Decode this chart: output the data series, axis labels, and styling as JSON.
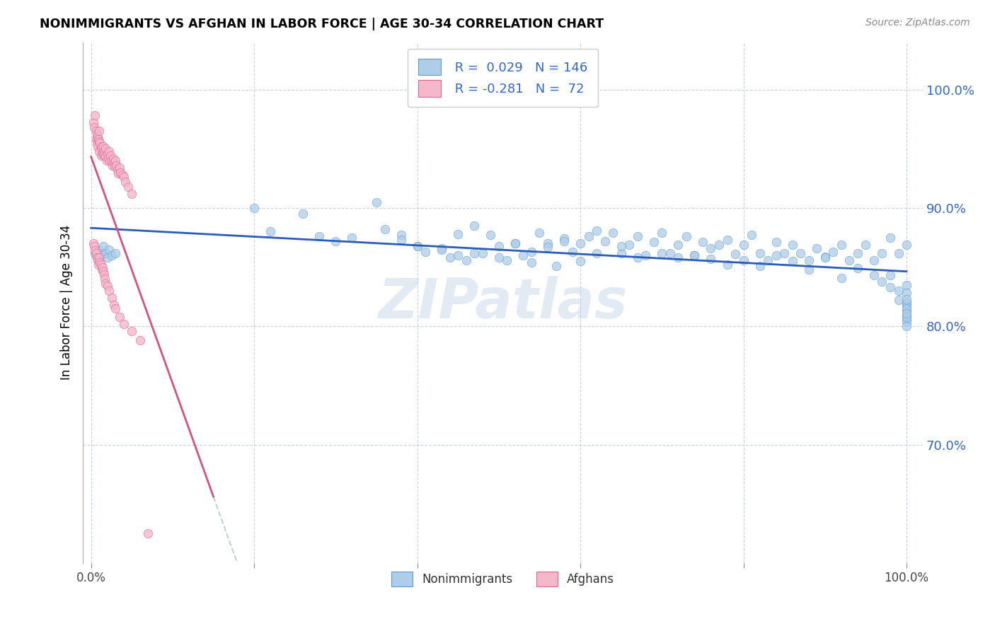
{
  "title": "NONIMMIGRANTS VS AFGHAN IN LABOR FORCE | AGE 30-34 CORRELATION CHART",
  "source": "Source: ZipAtlas.com",
  "ylabel": "In Labor Force | Age 30-34",
  "y_ticks": [
    0.7,
    0.8,
    0.9,
    1.0
  ],
  "y_tick_labels": [
    "70.0%",
    "80.0%",
    "90.0%",
    "100.0%"
  ],
  "x_ticks": [
    0.0,
    0.2,
    0.4,
    0.6,
    0.8,
    1.0
  ],
  "x_tick_labels_show": [
    "0.0%",
    "",
    "",
    "",
    "",
    "100.0%"
  ],
  "legend_blue_r": "0.029",
  "legend_blue_n": "146",
  "legend_pink_r": "-0.281",
  "legend_pink_n": "72",
  "blue_color": "#aecde8",
  "blue_edge_color": "#5b9bd5",
  "pink_color": "#f4b8cb",
  "pink_edge_color": "#e06090",
  "trend_blue_color": "#2a5cbe",
  "trend_pink_color": "#d94f80",
  "trend_dashed_color": "#c5cdd8",
  "watermark": "ZIPatlas",
  "xlim": [
    -0.01,
    1.02
  ],
  "ylim": [
    0.6,
    1.04
  ],
  "blue_scatter_x": [
    0.005,
    0.008,
    0.01,
    0.012,
    0.015,
    0.018,
    0.02,
    0.022,
    0.025,
    0.03,
    0.2,
    0.22,
    0.26,
    0.28,
    0.3,
    0.32,
    0.35,
    0.36,
    0.38,
    0.4,
    0.41,
    0.43,
    0.44,
    0.45,
    0.46,
    0.47,
    0.48,
    0.49,
    0.5,
    0.51,
    0.52,
    0.53,
    0.54,
    0.55,
    0.56,
    0.57,
    0.58,
    0.59,
    0.6,
    0.61,
    0.62,
    0.63,
    0.64,
    0.65,
    0.66,
    0.67,
    0.68,
    0.69,
    0.7,
    0.71,
    0.72,
    0.73,
    0.74,
    0.75,
    0.76,
    0.77,
    0.78,
    0.79,
    0.8,
    0.81,
    0.82,
    0.83,
    0.84,
    0.85,
    0.86,
    0.87,
    0.88,
    0.89,
    0.9,
    0.91,
    0.92,
    0.93,
    0.94,
    0.95,
    0.96,
    0.97,
    0.98,
    0.99,
    1.0,
    0.38,
    0.4,
    0.43,
    0.45,
    0.47,
    0.5,
    0.52,
    0.54,
    0.56,
    0.58,
    0.6,
    0.62,
    0.65,
    0.67,
    0.7,
    0.72,
    0.74,
    0.76,
    0.78,
    0.8,
    0.82,
    0.84,
    0.86,
    0.88,
    0.9,
    0.92,
    0.94,
    0.96,
    0.97,
    0.98,
    0.98,
    0.99,
    0.99,
    1.0,
    1.0,
    1.0,
    1.0,
    1.0,
    1.0,
    1.0,
    1.0,
    1.0,
    1.0,
    1.0,
    1.0,
    1.0,
    1.0
  ],
  "blue_scatter_y": [
    0.862,
    0.858,
    0.865,
    0.86,
    0.868,
    0.862,
    0.858,
    0.865,
    0.86,
    0.862,
    0.9,
    0.88,
    0.895,
    0.876,
    0.872,
    0.875,
    0.905,
    0.882,
    0.877,
    0.868,
    0.863,
    0.866,
    0.858,
    0.878,
    0.856,
    0.885,
    0.862,
    0.877,
    0.868,
    0.856,
    0.87,
    0.86,
    0.854,
    0.879,
    0.87,
    0.851,
    0.874,
    0.863,
    0.87,
    0.876,
    0.881,
    0.872,
    0.879,
    0.862,
    0.869,
    0.876,
    0.86,
    0.871,
    0.879,
    0.862,
    0.869,
    0.876,
    0.86,
    0.871,
    0.866,
    0.869,
    0.873,
    0.861,
    0.869,
    0.877,
    0.862,
    0.856,
    0.871,
    0.862,
    0.869,
    0.862,
    0.856,
    0.866,
    0.859,
    0.863,
    0.869,
    0.856,
    0.862,
    0.869,
    0.856,
    0.862,
    0.875,
    0.862,
    0.869,
    0.873,
    0.868,
    0.865,
    0.86,
    0.862,
    0.858,
    0.87,
    0.863,
    0.867,
    0.872,
    0.855,
    0.862,
    0.868,
    0.858,
    0.862,
    0.858,
    0.86,
    0.857,
    0.852,
    0.856,
    0.851,
    0.86,
    0.855,
    0.848,
    0.858,
    0.841,
    0.849,
    0.843,
    0.838,
    0.833,
    0.843,
    0.83,
    0.822,
    0.82,
    0.817,
    0.813,
    0.809,
    0.806,
    0.804,
    0.8,
    0.82,
    0.815,
    0.808,
    0.835,
    0.828,
    0.823,
    0.811
  ],
  "pink_scatter_x": [
    0.003,
    0.004,
    0.005,
    0.006,
    0.006,
    0.007,
    0.007,
    0.008,
    0.008,
    0.009,
    0.01,
    0.01,
    0.01,
    0.011,
    0.012,
    0.012,
    0.013,
    0.014,
    0.015,
    0.015,
    0.016,
    0.017,
    0.018,
    0.018,
    0.019,
    0.02,
    0.021,
    0.022,
    0.023,
    0.024,
    0.025,
    0.026,
    0.027,
    0.028,
    0.029,
    0.03,
    0.031,
    0.032,
    0.033,
    0.035,
    0.036,
    0.038,
    0.04,
    0.042,
    0.045,
    0.05,
    0.003,
    0.004,
    0.005,
    0.006,
    0.007,
    0.008,
    0.009,
    0.01,
    0.011,
    0.012,
    0.013,
    0.014,
    0.015,
    0.016,
    0.017,
    0.018,
    0.02,
    0.022,
    0.025,
    0.028,
    0.03,
    0.035,
    0.04,
    0.05,
    0.06,
    0.07
  ],
  "pink_scatter_y": [
    0.972,
    0.968,
    0.978,
    0.965,
    0.958,
    0.962,
    0.955,
    0.96,
    0.952,
    0.958,
    0.965,
    0.956,
    0.948,
    0.955,
    0.95,
    0.944,
    0.952,
    0.946,
    0.952,
    0.945,
    0.948,
    0.944,
    0.95,
    0.943,
    0.94,
    0.946,
    0.942,
    0.948,
    0.94,
    0.944,
    0.94,
    0.936,
    0.942,
    0.938,
    0.935,
    0.94,
    0.936,
    0.932,
    0.929,
    0.934,
    0.93,
    0.928,
    0.926,
    0.922,
    0.918,
    0.912,
    0.87,
    0.868,
    0.864,
    0.862,
    0.858,
    0.856,
    0.852,
    0.858,
    0.854,
    0.852,
    0.848,
    0.85,
    0.846,
    0.844,
    0.84,
    0.836,
    0.834,
    0.83,
    0.824,
    0.818,
    0.815,
    0.808,
    0.802,
    0.796,
    0.788,
    0.625
  ],
  "pink_trend_x_start": 0.0,
  "pink_trend_x_solid_end": 0.15,
  "pink_trend_x_dash_end": 0.5
}
